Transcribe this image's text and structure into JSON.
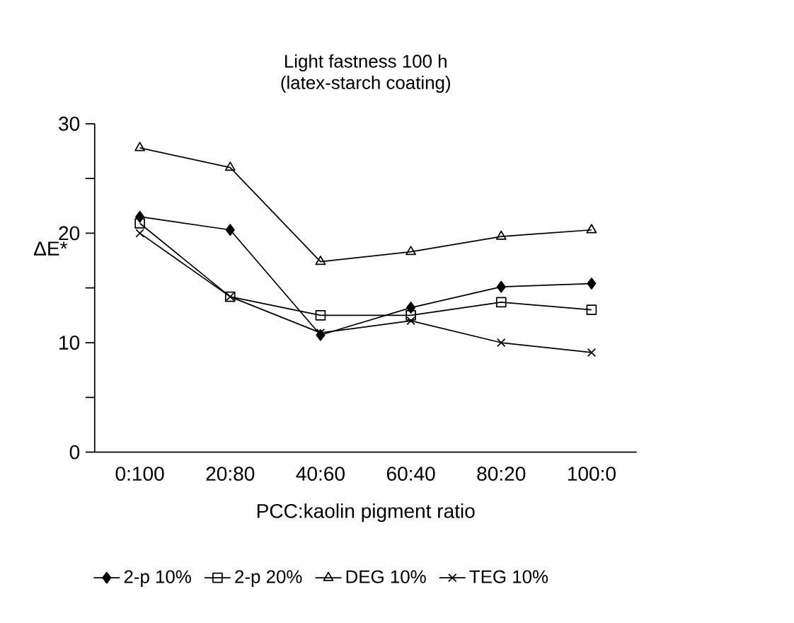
{
  "chart_data": {
    "type": "line",
    "title": "Light fastness 100 h",
    "subtitle": "(latex-starch coating)",
    "xlabel": "PCC:kaolin pigment ratio",
    "ylabel": "ΔE*",
    "categories": [
      "0:100",
      "20:80",
      "40:60",
      "60:40",
      "80:20",
      "100:0"
    ],
    "series": [
      {
        "name": "2-p 10%",
        "color": "#000000",
        "marker": "diamond",
        "values": [
          21.5,
          20.3,
          10.7,
          13.2,
          15.1,
          15.4
        ]
      },
      {
        "name": "2-p 20%",
        "color": "#000000",
        "marker": "square",
        "values": [
          20.9,
          14.2,
          12.5,
          12.5,
          13.7,
          13.0
        ]
      },
      {
        "name": "DEG 10%",
        "color": "#000000",
        "marker": "triangle",
        "values": [
          27.8,
          26.0,
          17.4,
          18.3,
          19.7,
          20.3
        ]
      },
      {
        "name": "TEG 10%",
        "color": "#000000",
        "marker": "cross",
        "values": [
          20.0,
          14.2,
          10.9,
          12.0,
          10.0,
          9.1
        ]
      }
    ],
    "ylim": [
      0,
      30
    ],
    "yticks": [
      0,
      {
        "value": 5,
        "label": null
      },
      10,
      {
        "value": 15,
        "label": null
      },
      20,
      {
        "value": 25,
        "label": null
      },
      30
    ],
    "grid": false,
    "legend": "bottom",
    "line_style": "solid"
  }
}
